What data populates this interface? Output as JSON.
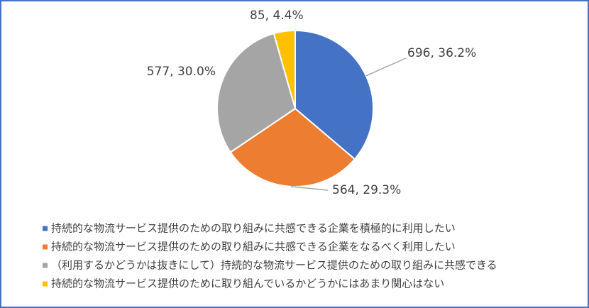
{
  "chart_data": {
    "type": "pie",
    "categories": [
      "持続的な物流サービス提供のための取り組みに共感できる企業を積極的に利用したい",
      "持続的な物流サービス提供のための取り組みに共感できる企業をなるべく利用したい",
      "（利用するかどうかは抜きにして）持続的な物流サービス提供のための取り組みに共感できる",
      "持続的な物流サービス提供のために取り組んでいるかどうかにはあまり関心はない"
    ],
    "values": [
      696,
      564,
      577,
      85
    ],
    "value_labels": [
      "696, 36.2%",
      "564, 29.3%",
      "577, 30.0%",
      "85, 4.4%"
    ],
    "colors": [
      "#4472c4",
      "#ed7d31",
      "#a5a5a5",
      "#ffc000"
    ],
    "legend": "bottom"
  }
}
